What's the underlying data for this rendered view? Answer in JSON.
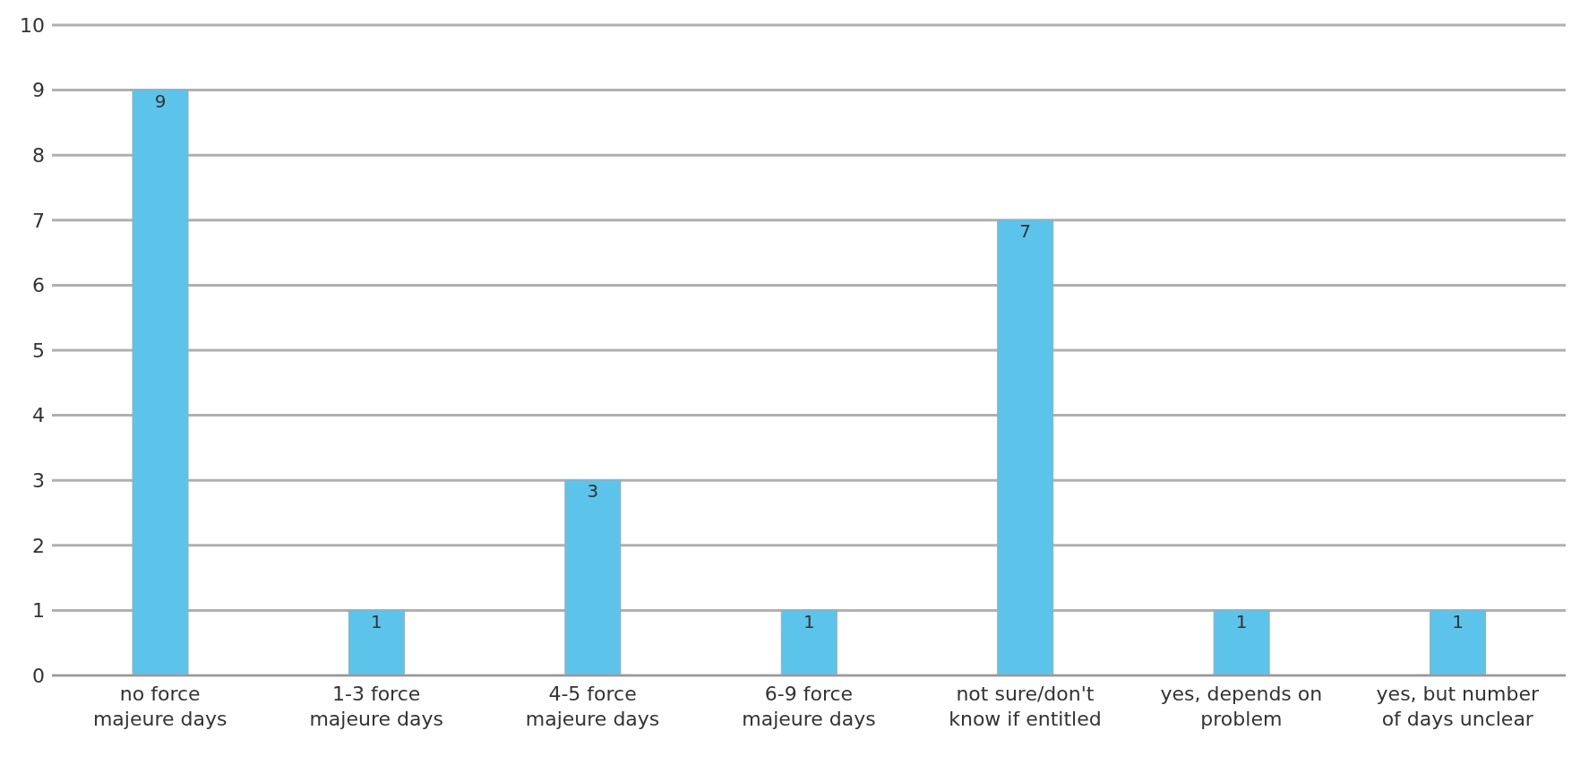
{
  "chart_data": {
    "type": "bar",
    "categories": [
      "no force majeure days",
      "1-3 force majeure days",
      "4-5 force majeure days",
      "6-9 force majeure days",
      "not sure/don't know if entitled",
      "yes, depends on problem",
      "yes, but number of days unclear"
    ],
    "values": [
      9,
      1,
      3,
      1,
      7,
      1,
      1
    ],
    "color": "#5cc4ea",
    "ylim": [
      0,
      10
    ],
    "yticks": [
      0,
      1,
      2,
      3,
      4,
      5,
      6,
      7,
      8,
      9,
      10
    ],
    "grid": "y",
    "data_labels": true
  }
}
